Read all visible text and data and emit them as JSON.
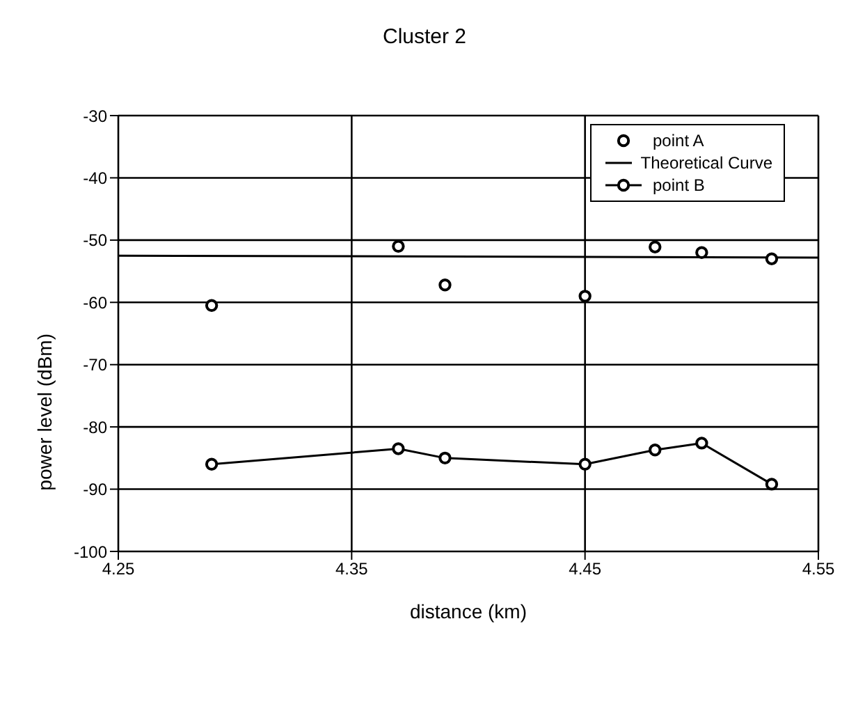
{
  "chart_data": {
    "type": "line",
    "title": "Cluster 2",
    "xlabel": "distance (km)",
    "ylabel": "power level (dBm)",
    "x": [
      4.29,
      4.37,
      4.39,
      4.45,
      4.48,
      4.5,
      4.53
    ],
    "series": [
      {
        "name": "point A",
        "type": "scatter",
        "color": "#000000",
        "marker": "circle",
        "values": [
          -60.5,
          -51,
          -57.2,
          -59,
          -51.1,
          -52,
          -53
        ]
      },
      {
        "name": "Theoretical Curve",
        "color": "#000000",
        "marker": "none",
        "x": [
          4.25,
          4.55
        ],
        "values": [
          -52.5,
          -52.8
        ]
      },
      {
        "name": "point B",
        "color": "#000000",
        "marker": "circle",
        "values": [
          -86,
          -83.5,
          -85,
          -86,
          -83.7,
          -82.6,
          -89.2
        ]
      }
    ],
    "xlim": [
      4.25,
      4.55
    ],
    "xticks": [
      4.25,
      4.35,
      4.45,
      4.55
    ],
    "ylim": [
      -100,
      -30
    ],
    "yticks": [
      -100,
      -90,
      -80,
      -70,
      -60,
      -50,
      -40,
      -30
    ],
    "grid": true,
    "legend": "top right",
    "line_style": "solid"
  }
}
